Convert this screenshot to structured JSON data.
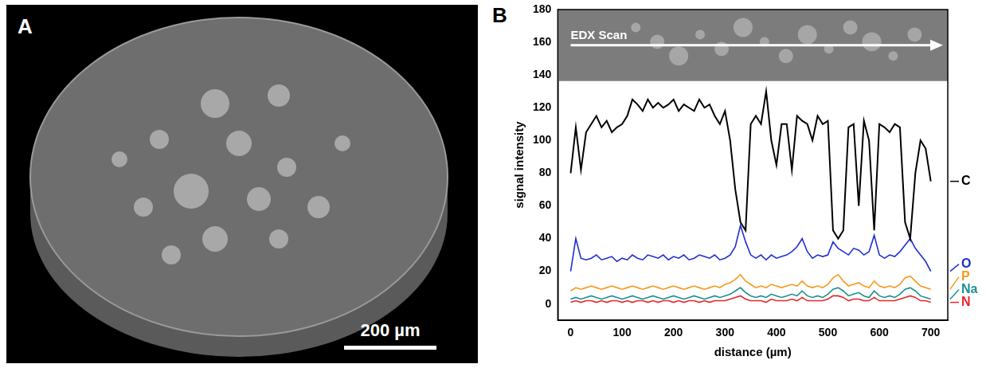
{
  "figure": {
    "panel_labels": [
      "A",
      "B"
    ],
    "micrograph": {
      "scale_bar": "200 µm"
    }
  },
  "chart_data": {
    "type": "line",
    "x_label": "distance (µm)",
    "y_label": "signal intensity",
    "annotations": [
      "EDX Scan"
    ],
    "x": [
      0,
      10,
      20,
      30,
      40,
      50,
      60,
      70,
      80,
      90,
      100,
      110,
      120,
      130,
      140,
      150,
      160,
      170,
      180,
      190,
      200,
      210,
      220,
      230,
      240,
      250,
      260,
      270,
      280,
      290,
      300,
      310,
      320,
      330,
      340,
      350,
      360,
      370,
      380,
      390,
      400,
      410,
      420,
      430,
      440,
      450,
      460,
      470,
      480,
      490,
      500,
      510,
      520,
      530,
      540,
      550,
      560,
      570,
      580,
      590,
      600,
      610,
      620,
      630,
      640,
      650,
      660,
      670,
      680,
      690,
      700
    ],
    "series": [
      {
        "name": "C",
        "color": "#000000",
        "values": [
          80,
          108,
          82,
          105,
          110,
          115,
          108,
          112,
          105,
          108,
          110,
          115,
          125,
          122,
          118,
          125,
          120,
          123,
          120,
          122,
          125,
          118,
          122,
          120,
          118,
          125,
          120,
          122,
          115,
          110,
          118,
          100,
          70,
          50,
          45,
          110,
          115,
          110,
          130,
          100,
          85,
          110,
          110,
          82,
          115,
          112,
          110,
          100,
          115,
          110,
          112,
          45,
          40,
          45,
          108,
          110,
          60,
          112,
          100,
          45,
          110,
          108,
          105,
          110,
          108,
          50,
          40,
          80,
          100,
          95,
          75
        ]
      },
      {
        "name": "O",
        "color": "#1f2fd0",
        "values": [
          20,
          40,
          28,
          27,
          28,
          30,
          27,
          28,
          29,
          26,
          28,
          27,
          30,
          28,
          27,
          30,
          29,
          28,
          30,
          27,
          29,
          28,
          30,
          27,
          28,
          30,
          29,
          28,
          30,
          27,
          28,
          30,
          35,
          48,
          38,
          30,
          28,
          30,
          27,
          30,
          28,
          29,
          30,
          32,
          35,
          40,
          32,
          28,
          30,
          29,
          30,
          38,
          34,
          32,
          30,
          34,
          33,
          30,
          32,
          42,
          30,
          28,
          30,
          29,
          32,
          36,
          40,
          34,
          30,
          26,
          20
        ]
      },
      {
        "name": "P",
        "color": "#f59a1f",
        "values": [
          8,
          10,
          9,
          10,
          11,
          10,
          9,
          10,
          11,
          10,
          9,
          10,
          11,
          10,
          9,
          10,
          11,
          10,
          9,
          10,
          11,
          10,
          9,
          10,
          11,
          10,
          9,
          10,
          11,
          10,
          12,
          13,
          15,
          18,
          14,
          12,
          10,
          11,
          10,
          12,
          11,
          10,
          11,
          12,
          11,
          14,
          11,
          10,
          11,
          10,
          12,
          16,
          18,
          14,
          11,
          12,
          13,
          11,
          10,
          14,
          11,
          10,
          11,
          10,
          12,
          16,
          17,
          14,
          11,
          10,
          9
        ]
      },
      {
        "name": "Na",
        "color": "#1a9090",
        "values": [
          3,
          4,
          3,
          4,
          5,
          4,
          3,
          4,
          5,
          4,
          3,
          4,
          5,
          4,
          3,
          4,
          5,
          4,
          3,
          4,
          5,
          4,
          3,
          4,
          5,
          4,
          3,
          4,
          5,
          4,
          5,
          6,
          8,
          10,
          7,
          5,
          4,
          5,
          4,
          6,
          5,
          4,
          5,
          6,
          5,
          8,
          5,
          4,
          5,
          4,
          6,
          9,
          10,
          8,
          5,
          6,
          7,
          5,
          4,
          8,
          5,
          4,
          5,
          4,
          6,
          9,
          10,
          8,
          5,
          4,
          3
        ]
      },
      {
        "name": "N",
        "color": "#e8262a",
        "values": [
          1,
          2,
          1,
          2,
          2,
          1,
          2,
          1,
          2,
          2,
          1,
          2,
          1,
          2,
          2,
          1,
          2,
          1,
          2,
          2,
          1,
          2,
          1,
          2,
          2,
          1,
          2,
          1,
          2,
          2,
          2,
          3,
          4,
          5,
          3,
          2,
          2,
          2,
          1,
          3,
          2,
          2,
          2,
          3,
          2,
          4,
          2,
          2,
          2,
          2,
          3,
          5,
          5,
          4,
          2,
          3,
          3,
          2,
          2,
          4,
          2,
          2,
          2,
          2,
          3,
          4,
          5,
          4,
          2,
          2,
          1
        ]
      }
    ],
    "xlim": [
      -25,
      733
    ],
    "xticks": [
      0,
      100,
      200,
      300,
      400,
      500,
      600,
      700
    ],
    "ylim": [
      -10,
      180
    ],
    "yticks": [
      0,
      20,
      40,
      60,
      80,
      100,
      120,
      140,
      160,
      180
    ],
    "grid": false
  }
}
